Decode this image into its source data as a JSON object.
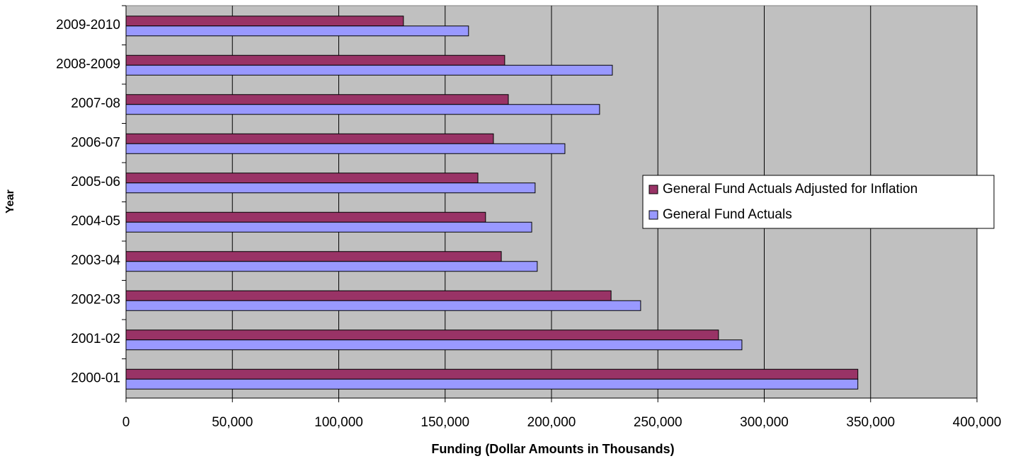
{
  "chart_data": {
    "type": "hbar",
    "x_label": "Funding (Dollar Amounts in Thousands)",
    "y_label": "Year",
    "categories": [
      "2009-2010",
      "2008-2009",
      "2007-08",
      "2006-07",
      "2005-06",
      "2004-05",
      "2003-04",
      "2002-03",
      "2001-02",
      "2000-01"
    ],
    "series": [
      {
        "name": "General Fund Actuals Adjusted for Inflation",
        "color": "#993366",
        "values": [
          130400,
          178000,
          179700,
          172700,
          165400,
          169000,
          176400,
          228000,
          278500,
          344000
        ]
      },
      {
        "name": "General Fund Actuals",
        "color": "#9999ff",
        "values": [
          161000,
          228600,
          222600,
          206300,
          192300,
          190700,
          193300,
          241900,
          289500,
          344000
        ]
      }
    ],
    "xlim": [
      0,
      400000
    ],
    "xticks": [
      0,
      {
        "value": 50000,
        "label": "50,000"
      },
      {
        "value": 100000,
        "label": "100,000"
      },
      {
        "value": 150000,
        "label": "150,000"
      },
      {
        "value": 200000,
        "label": "200,000"
      },
      {
        "value": 250000,
        "label": "250,000"
      },
      {
        "value": 300000,
        "label": "300,000"
      },
      {
        "value": 350000,
        "label": "350,000"
      },
      {
        "value": 400000,
        "label": "400,000"
      }
    ],
    "grid": true,
    "legend": "right",
    "background": "#c0c0c0"
  }
}
